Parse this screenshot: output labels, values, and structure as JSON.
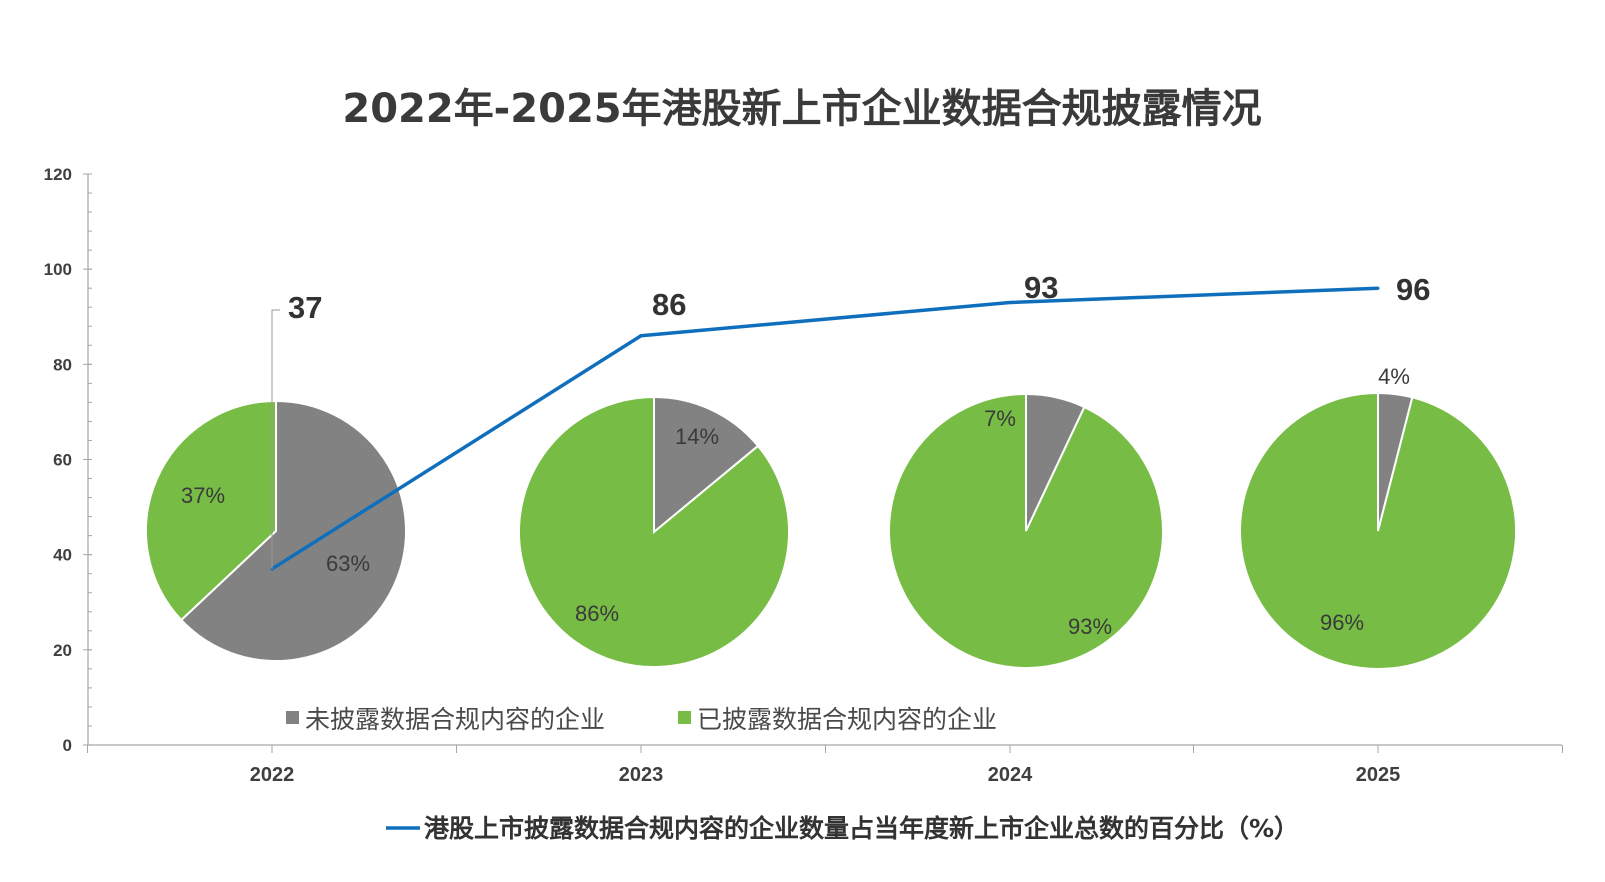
{
  "chart_data": {
    "type": "line",
    "title": "2022年-2025年港股新上市企业数据合规披露情况",
    "categories": [
      "2022",
      "2023",
      "2024",
      "2025"
    ],
    "ylim": [
      0,
      120
    ],
    "yticks": [
      0,
      20,
      40,
      60,
      80,
      100,
      120
    ],
    "grid": false,
    "series": [
      {
        "name": "港股上市披露数据合规内容的企业数量占当年度新上市企业总数的百分比（%）",
        "values": [
          37,
          86,
          93,
          96
        ],
        "labels": [
          "37",
          "86",
          "93",
          "96"
        ],
        "color": "#0f6fbd"
      }
    ],
    "pies": [
      {
        "category": "2022",
        "slices": [
          {
            "name": "未披露数据合规内容的企业",
            "value": 63,
            "label": "63%",
            "color": "#828282"
          },
          {
            "name": "已披露数据合规内容的企业",
            "value": 37,
            "label": "37%",
            "color": "#77bc44"
          }
        ]
      },
      {
        "category": "2023",
        "slices": [
          {
            "name": "未披露数据合规内容的企业",
            "value": 14,
            "label": "14%",
            "color": "#828282"
          },
          {
            "name": "已披露数据合规内容的企业",
            "value": 86,
            "label": "86%",
            "color": "#77bc44"
          }
        ]
      },
      {
        "category": "2024",
        "slices": [
          {
            "name": "未披露数据合规内容的企业",
            "value": 7,
            "label": "7%",
            "color": "#828282"
          },
          {
            "name": "已披露数据合规内容的企业",
            "value": 93,
            "label": "93%",
            "color": "#77bc44"
          }
        ]
      },
      {
        "category": "2025",
        "slices": [
          {
            "name": "未披露数据合规内容的企业",
            "value": 4,
            "label": "4%",
            "color": "#828282"
          },
          {
            "name": "已披露数据合规内容的企业",
            "value": 96,
            "label": "96%",
            "color": "#77bc44"
          }
        ]
      }
    ],
    "pie_legend": [
      {
        "name": "未披露数据合规内容的企业",
        "color": "#828282"
      },
      {
        "name": "已披露数据合规内容的企业",
        "color": "#77bc44"
      }
    ],
    "line_legend": "港股上市披露数据合规内容的企业数量占当年度新上市企业总数的百分比（%）",
    "legend_position": "bottom"
  }
}
